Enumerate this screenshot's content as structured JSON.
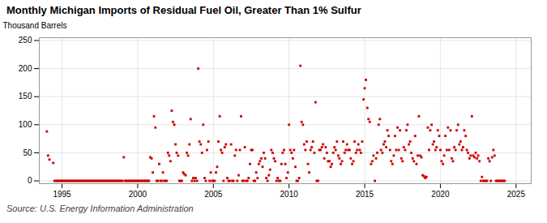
{
  "chart_data": {
    "type": "scatter",
    "title": "Monthly Michigan Imports of Residual Fuel Oil, Greater Than 1% Sulfur",
    "ylabel": "Thousand Barrels",
    "caption": "Source: U.S. Energy Information Administration",
    "color": "#cc0000",
    "marker": "square",
    "grid": true,
    "xlim": [
      1993.5,
      2026.0
    ],
    "ylim": [
      -5,
      255
    ],
    "xticks": [
      1995,
      2000,
      2005,
      2010,
      2015,
      2020,
      2025
    ],
    "yticks": [
      0,
      50,
      100,
      150,
      200,
      250
    ],
    "x": [
      1994.0,
      1994.08,
      1994.17,
      1994.42,
      1994.5,
      1994.58,
      1994.67,
      1994.75,
      1994.83,
      1994.92,
      1995.0,
      1995.08,
      1995.17,
      1995.25,
      1995.33,
      1995.42,
      1995.5,
      1995.58,
      1995.67,
      1995.75,
      1995.83,
      1995.92,
      1996.0,
      1996.08,
      1996.17,
      1996.25,
      1996.33,
      1996.42,
      1996.5,
      1996.58,
      1996.67,
      1996.75,
      1996.83,
      1996.92,
      1997.0,
      1997.08,
      1997.17,
      1997.25,
      1997.33,
      1997.42,
      1997.5,
      1997.58,
      1997.67,
      1997.75,
      1997.83,
      1997.92,
      1998.0,
      1998.08,
      1998.17,
      1998.25,
      1998.33,
      1998.42,
      1998.5,
      1998.58,
      1998.67,
      1998.75,
      1998.83,
      1998.92,
      1999.0,
      1999.08,
      1999.17,
      1999.25,
      1999.33,
      1999.42,
      1999.5,
      1999.58,
      1999.67,
      1999.75,
      1999.83,
      1999.92,
      2000.0,
      2000.08,
      2000.17,
      2000.25,
      2000.33,
      2000.42,
      2000.5,
      2000.58,
      2000.67,
      2000.75,
      2000.83,
      2000.92,
      2001.0,
      2001.08,
      2001.17,
      2001.25,
      2001.33,
      2001.42,
      2001.5,
      2001.58,
      2001.67,
      2001.75,
      2001.83,
      2001.92,
      2002.0,
      2002.08,
      2002.17,
      2002.25,
      2002.33,
      2002.42,
      2002.5,
      2002.58,
      2002.67,
      2002.75,
      2002.83,
      2002.92,
      2003.0,
      2003.08,
      2003.17,
      2003.25,
      2003.33,
      2003.42,
      2003.5,
      2003.58,
      2003.67,
      2003.75,
      2003.83,
      2003.92,
      2004.0,
      2004.08,
      2004.17,
      2004.25,
      2004.33,
      2004.42,
      2004.5,
      2004.58,
      2004.67,
      2004.75,
      2004.83,
      2004.92,
      2005.0,
      2005.08,
      2005.17,
      2005.25,
      2005.33,
      2005.42,
      2005.5,
      2005.58,
      2005.67,
      2005.75,
      2005.83,
      2005.92,
      2006.0,
      2006.08,
      2006.17,
      2006.25,
      2006.33,
      2006.42,
      2006.5,
      2006.58,
      2006.67,
      2006.75,
      2006.83,
      2006.92,
      2007.0,
      2007.08,
      2007.17,
      2007.25,
      2007.33,
      2007.42,
      2007.5,
      2007.58,
      2007.67,
      2007.75,
      2007.83,
      2007.92,
      2008.0,
      2008.08,
      2008.17,
      2008.25,
      2008.33,
      2008.42,
      2008.5,
      2008.58,
      2008.67,
      2008.75,
      2008.83,
      2008.92,
      2009.0,
      2009.08,
      2009.17,
      2009.25,
      2009.33,
      2009.42,
      2009.5,
      2009.58,
      2009.67,
      2009.75,
      2009.83,
      2009.92,
      2010.0,
      2010.08,
      2010.17,
      2010.25,
      2010.33,
      2010.42,
      2010.5,
      2010.58,
      2010.67,
      2010.75,
      2010.83,
      2010.92,
      2011.0,
      2011.08,
      2011.17,
      2011.25,
      2011.33,
      2011.42,
      2011.5,
      2011.58,
      2011.67,
      2011.75,
      2011.83,
      2011.92,
      2012.0,
      2012.08,
      2012.17,
      2012.25,
      2012.33,
      2012.42,
      2012.5,
      2012.58,
      2012.67,
      2012.75,
      2012.83,
      2012.92,
      2013.0,
      2013.08,
      2013.17,
      2013.25,
      2013.33,
      2013.42,
      2013.5,
      2013.58,
      2013.67,
      2013.75,
      2013.83,
      2013.92,
      2014.0,
      2014.08,
      2014.17,
      2014.25,
      2014.33,
      2014.42,
      2014.5,
      2014.58,
      2014.67,
      2014.75,
      2014.83,
      2014.92,
      2015.0,
      2015.08,
      2015.17,
      2015.25,
      2015.33,
      2015.42,
      2015.5,
      2015.58,
      2015.67,
      2015.75,
      2015.83,
      2015.92,
      2016.0,
      2016.08,
      2016.17,
      2016.25,
      2016.33,
      2016.42,
      2016.5,
      2016.58,
      2016.67,
      2016.75,
      2016.83,
      2016.92,
      2017.0,
      2017.08,
      2017.17,
      2017.25,
      2017.33,
      2017.42,
      2017.5,
      2017.58,
      2017.67,
      2017.75,
      2017.83,
      2017.92,
      2018.0,
      2018.08,
      2018.17,
      2018.25,
      2018.33,
      2018.42,
      2018.5,
      2018.58,
      2018.67,
      2018.75,
      2018.83,
      2018.92,
      2019.0,
      2019.08,
      2019.17,
      2019.25,
      2019.33,
      2019.42,
      2019.5,
      2019.58,
      2019.67,
      2019.75,
      2019.83,
      2019.92,
      2020.0,
      2020.08,
      2020.17,
      2020.25,
      2020.33,
      2020.42,
      2020.5,
      2020.58,
      2020.67,
      2020.75,
      2020.83,
      2020.92,
      2021.0,
      2021.08,
      2021.17,
      2021.25,
      2021.33,
      2021.42,
      2021.5,
      2021.58,
      2021.67,
      2021.75,
      2021.83,
      2021.92,
      2022.0,
      2022.08,
      2022.17,
      2022.25,
      2022.33,
      2022.42,
      2022.5,
      2022.58,
      2022.67,
      2022.75,
      2022.83,
      2022.92,
      2023.0,
      2023.08,
      2023.17,
      2023.25,
      2023.33,
      2023.42,
      2023.5,
      2023.58,
      2023.67,
      2023.75,
      2023.83,
      2023.92,
      2024.0,
      2024.08,
      2024.17,
      2024.25
    ],
    "values": [
      88,
      45,
      38,
      32,
      0,
      0,
      0,
      0,
      0,
      0,
      0,
      0,
      0,
      0,
      0,
      0,
      0,
      0,
      0,
      0,
      0,
      0,
      0,
      0,
      0,
      0,
      0,
      0,
      0,
      0,
      0,
      0,
      0,
      0,
      0,
      0,
      0,
      0,
      0,
      0,
      0,
      0,
      0,
      0,
      0,
      0,
      0,
      0,
      0,
      0,
      0,
      0,
      0,
      0,
      0,
      0,
      0,
      0,
      0,
      42,
      0,
      0,
      0,
      0,
      0,
      0,
      0,
      0,
      0,
      0,
      0,
      0,
      0,
      0,
      0,
      0,
      0,
      0,
      0,
      0,
      42,
      40,
      15,
      115,
      95,
      0,
      0,
      30,
      0,
      0,
      15,
      0,
      0,
      0,
      50,
      45,
      35,
      125,
      105,
      100,
      65,
      50,
      45,
      0,
      0,
      0,
      15,
      12,
      10,
      50,
      45,
      65,
      110,
      0,
      5,
      0,
      5,
      0,
      200,
      70,
      65,
      50,
      100,
      5,
      0,
      55,
      70,
      0,
      15,
      0,
      0,
      0,
      15,
      25,
      70,
      115,
      55,
      50,
      0,
      60,
      65,
      5,
      0,
      0,
      65,
      0,
      0,
      45,
      55,
      0,
      10,
      55,
      115,
      0,
      0,
      60,
      0,
      0,
      5,
      30,
      55,
      55,
      0,
      0,
      15,
      5,
      30,
      35,
      40,
      25,
      50,
      40,
      5,
      0,
      10,
      20,
      55,
      50,
      40,
      35,
      0,
      5,
      0,
      0,
      30,
      50,
      55,
      30,
      5,
      15,
      100,
      55,
      50,
      40,
      55,
      25,
      0,
      0,
      5,
      205,
      105,
      100,
      65,
      55,
      70,
      30,
      15,
      55,
      60,
      70,
      50,
      140,
      0,
      0,
      55,
      55,
      60,
      65,
      40,
      60,
      50,
      35,
      35,
      25,
      30,
      50,
      60,
      55,
      70,
      45,
      40,
      30,
      35,
      70,
      50,
      55,
      65,
      55,
      55,
      40,
      30,
      35,
      70,
      50,
      55,
      65,
      55,
      50,
      70,
      145,
      165,
      180,
      130,
      110,
      105,
      30,
      35,
      45,
      0,
      40,
      50,
      100,
      110,
      55,
      50,
      65,
      70,
      60,
      90,
      80,
      55,
      35,
      30,
      45,
      80,
      55,
      95,
      55,
      90,
      40,
      35,
      60,
      55,
      90,
      100,
      65,
      70,
      50,
      40,
      35,
      80,
      30,
      45,
      115,
      45,
      42,
      10,
      8,
      5,
      7,
      95,
      55,
      90,
      100,
      65,
      70,
      55,
      60,
      90,
      80,
      55,
      35,
      30,
      45,
      80,
      55,
      95,
      55,
      90,
      40,
      35,
      60,
      55,
      90,
      100,
      65,
      70,
      55,
      60,
      90,
      80,
      55,
      50,
      40,
      45,
      115,
      45,
      42,
      50,
      40,
      45,
      35,
      0,
      7,
      0,
      0,
      0,
      0,
      40,
      35,
      0,
      42,
      55,
      45,
      0,
      0,
      0,
      0,
      0,
      0,
      0,
      0
    ]
  }
}
